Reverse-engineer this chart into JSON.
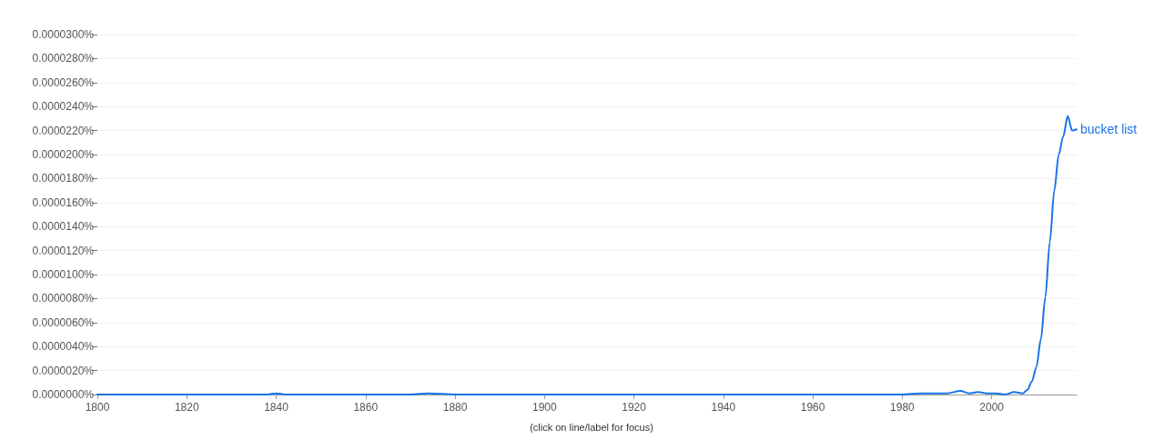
{
  "chart_data": {
    "type": "line",
    "x": [
      1800,
      1810,
      1820,
      1830,
      1838,
      1840,
      1842,
      1850,
      1855,
      1860,
      1870,
      1874,
      1880,
      1890,
      1900,
      1906,
      1910,
      1920,
      1930,
      1940,
      1950,
      1960,
      1970,
      1975,
      1980,
      1984,
      1988,
      1990,
      1993,
      1995,
      1997,
      1999,
      2001,
      2003,
      2005,
      2007,
      2008,
      2009,
      2010,
      2011,
      2012,
      2013,
      2014,
      2015,
      2016,
      2017,
      2018,
      2019
    ],
    "series": [
      {
        "name": "bucket list",
        "color": "#1a73e8",
        "values": [
          0,
          0,
          0,
          0,
          0,
          1e-07,
          0,
          0,
          0,
          0,
          0,
          1e-07,
          0,
          0,
          0,
          0,
          0,
          0,
          0,
          0,
          0,
          0,
          0,
          0,
          0,
          1e-07,
          1e-07,
          1e-07,
          3e-07,
          1e-07,
          2e-07,
          1e-07,
          1e-07,
          0,
          2e-07,
          1e-07,
          4e-07,
          1.1e-06,
          2.3e-06,
          4.6e-06,
          8.1e-06,
          1.27e-05,
          1.7e-05,
          2e-05,
          2.15e-05,
          2.32e-05,
          2.2e-05,
          2.21e-05
        ]
      }
    ],
    "xlim": [
      1800,
      2019
    ],
    "xticks": [
      1800,
      1820,
      1840,
      1860,
      1880,
      1900,
      1920,
      1940,
      1960,
      1980,
      2000
    ],
    "ylim": [
      0,
      3e-05
    ],
    "yticks": [
      {
        "value": 0,
        "label": "0.0000000%"
      },
      {
        "value": 2e-06,
        "label": "0.0000020%"
      },
      {
        "value": 4e-06,
        "label": "0.0000040%"
      },
      {
        "value": 6e-06,
        "label": "0.0000060%"
      },
      {
        "value": 8e-06,
        "label": "0.0000080%"
      },
      {
        "value": 1e-05,
        "label": "0.0000100%"
      },
      {
        "value": 1.2e-05,
        "label": "0.0000120%"
      },
      {
        "value": 1.4e-05,
        "label": "0.0000140%"
      },
      {
        "value": 1.6e-05,
        "label": "0.0000160%"
      },
      {
        "value": 1.8e-05,
        "label": "0.0000180%"
      },
      {
        "value": 2e-05,
        "label": "0.0000200%"
      },
      {
        "value": 2.2e-05,
        "label": "0.0000220%"
      },
      {
        "value": 2.4e-05,
        "label": "0.0000240%"
      },
      {
        "value": 2.6e-05,
        "label": "0.0000260%"
      },
      {
        "value": 2.8e-05,
        "label": "0.0000280%"
      },
      {
        "value": 3e-05,
        "label": "0.0000300%"
      }
    ],
    "grid": "y",
    "marker": "none",
    "line_style": "solid",
    "annotations": [
      "(click on line/label for focus)"
    ]
  }
}
